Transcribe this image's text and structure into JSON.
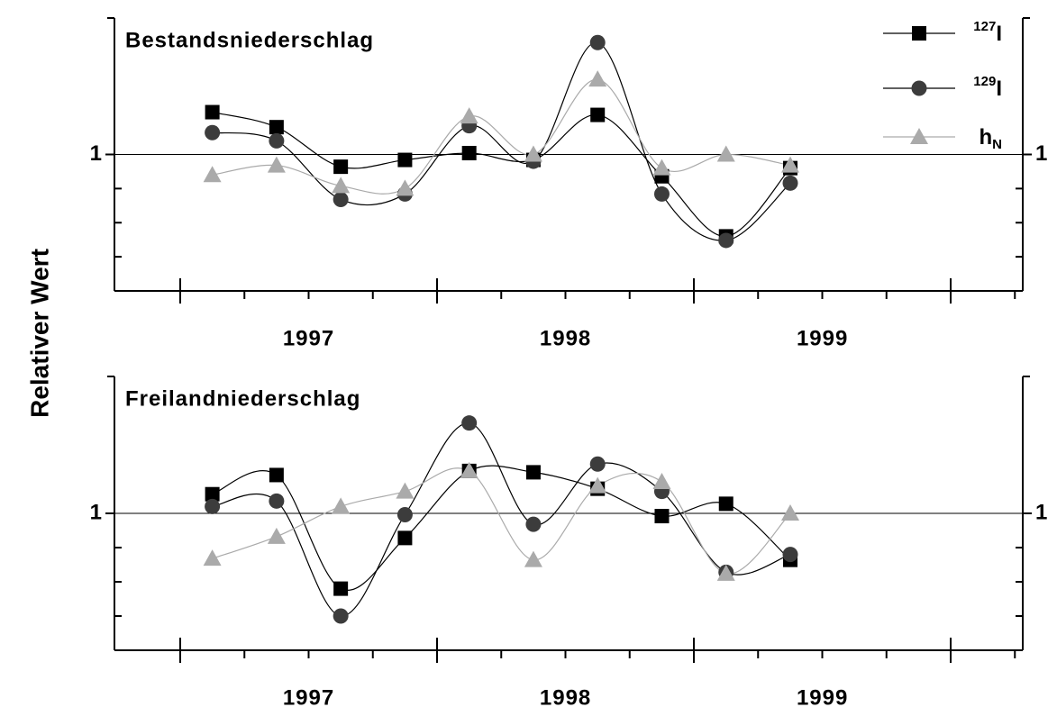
{
  "ylabel": "Relativer Wert",
  "chart_data": [
    {
      "type": "line",
      "title": "Bestandsniederschlag",
      "x": [
        1997.125,
        1997.375,
        1997.625,
        1997.875,
        1998.125,
        1998.375,
        1998.625,
        1998.875,
        1999.125,
        1999.375
      ],
      "series": [
        {
          "name": "127I",
          "color": "#000000",
          "marker": "square",
          "values": [
            1.31,
            1.2,
            0.91,
            0.96,
            1.01,
            0.96,
            1.29,
            0.84,
            0.4,
            0.9
          ]
        },
        {
          "name": "129I",
          "color": "#3c3c3c",
          "marker": "circle",
          "values": [
            1.16,
            1.1,
            0.67,
            0.71,
            1.21,
            0.95,
            1.82,
            0.71,
            0.37,
            0.79
          ]
        },
        {
          "name": "hN",
          "color": "#aaaaaa",
          "marker": "triangle",
          "values": [
            0.85,
            0.92,
            0.77,
            0.75,
            1.28,
            1.0,
            1.55,
            0.9,
            1.0,
            0.92
          ]
        }
      ],
      "xlim": [
        1996.744,
        2000.28
      ],
      "ylim": [
        0,
        2
      ],
      "xticks": [
        {
          "value": 1997.5,
          "label": "1997"
        },
        {
          "value": 1998.5,
          "label": "1998"
        },
        {
          "value": 1999.5,
          "label": "1999"
        }
      ],
      "yticks": [
        1
      ]
    },
    {
      "type": "line",
      "title": "Freilandniederschlag",
      "x": [
        1997.125,
        1997.375,
        1997.625,
        1997.875,
        1998.125,
        1998.375,
        1998.625,
        1998.875,
        1999.125,
        1999.375
      ],
      "series": [
        {
          "color": "#000000",
          "marker": "square",
          "values": [
            1.14,
            1.28,
            0.45,
            0.82,
            1.31,
            1.3,
            1.18,
            0.98,
            1.07,
            0.66
          ]
        },
        {
          "color": "#3c3c3c",
          "marker": "circle",
          "values": [
            1.05,
            1.09,
            0.25,
            0.99,
            1.66,
            0.92,
            1.36,
            1.16,
            0.57,
            0.7
          ]
        },
        {
          "color": "#aaaaaa",
          "marker": "triangle",
          "values": [
            0.67,
            0.83,
            1.05,
            1.16,
            1.31,
            0.66,
            1.2,
            1.23,
            0.56,
            1.0
          ]
        }
      ],
      "xlim": [
        1996.744,
        2000.28
      ],
      "ylim": [
        0,
        2
      ],
      "xticks": [
        {
          "value": 1997.5,
          "label": "1997"
        },
        {
          "value": 1998.5,
          "label": "1998"
        },
        {
          "value": 1999.5,
          "label": "1999"
        }
      ],
      "yticks": [
        1
      ]
    }
  ]
}
